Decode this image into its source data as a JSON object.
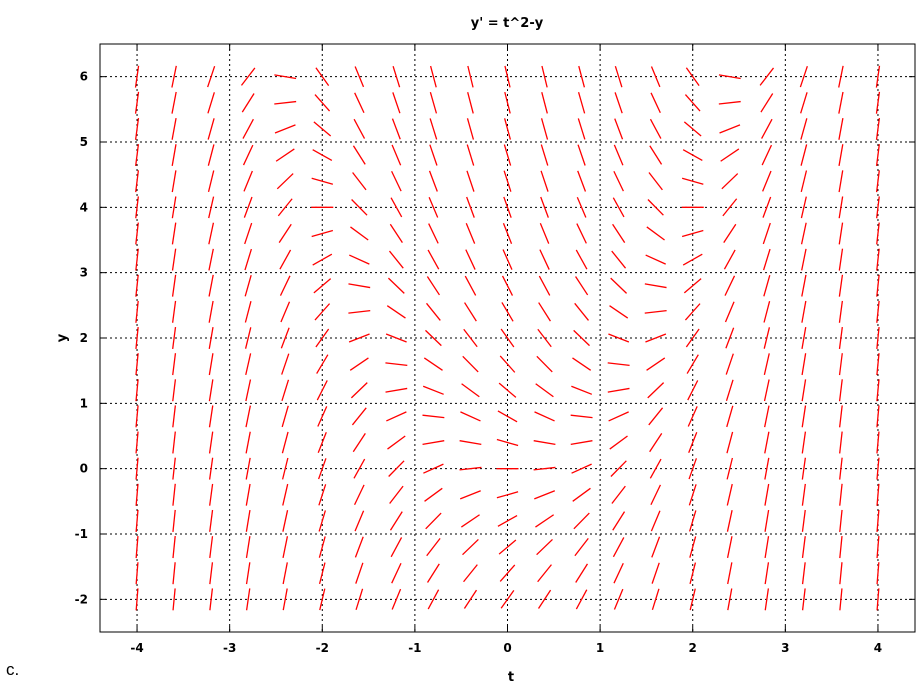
{
  "caption": "c.",
  "chart_data": {
    "type": "direction-field",
    "title": "y' =  t^2-y",
    "xlabel": "t",
    "ylabel": "y",
    "xlim": [
      -4.4,
      4.4
    ],
    "ylim": [
      -2.5,
      6.5
    ],
    "x_ticks": [
      -4,
      -3,
      -2,
      -1,
      0,
      1,
      2,
      3,
      4
    ],
    "x_tick_labels": [
      "-4",
      "-3",
      "-2",
      "-1",
      "0",
      "1",
      "2",
      "3",
      "4"
    ],
    "y_ticks": [
      -2,
      -1,
      0,
      1,
      2,
      3,
      4,
      5,
      6
    ],
    "y_tick_labels": [
      "-2",
      "-1",
      "0",
      "1",
      "2",
      "3",
      "4",
      "5",
      "6"
    ],
    "grid": true,
    "equation": "t^2 - y",
    "field_t": [
      -4,
      -3.6,
      -3.2,
      -2.8,
      -2.4,
      -2,
      -1.6,
      -1.2,
      -0.8,
      -0.4,
      0,
      0.4,
      0.8,
      1.2,
      1.6,
      2,
      2.4,
      2.8,
      3.2,
      3.6,
      4
    ],
    "field_y": [
      -2,
      -1.6,
      -1.2,
      -0.8,
      -0.4,
      0,
      0.4,
      0.8,
      1.2,
      1.6,
      2,
      2.4,
      2.8,
      3.2,
      3.6,
      4,
      4.4,
      4.8,
      5.2,
      5.6,
      6
    ],
    "segment_color": "#ff0000"
  }
}
